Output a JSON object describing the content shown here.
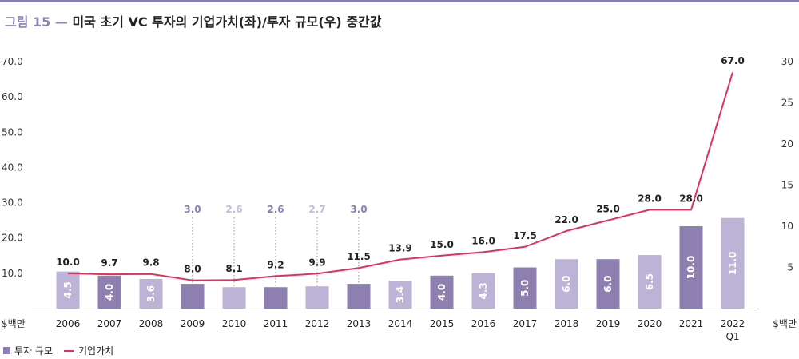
{
  "title": {
    "number": "그림 15",
    "dash": "—",
    "text": "미국 초기 VC 투자의 기업가치(좌)/투자 규모(우) 중간값"
  },
  "legend": {
    "bar_label": "투자 규모",
    "line_label": "기업가치"
  },
  "colors": {
    "bar_dark": "#8d7fb0",
    "bar_light": "#bdb3d6",
    "line": "#e0305e",
    "label_dark": "#8d7fb0",
    "label_light": "#c3bcda",
    "title_accent": "#8d84b8"
  },
  "chart_data": {
    "type": "bar+line",
    "categories": [
      "2006",
      "2007",
      "2008",
      "2009",
      "2010",
      "2011",
      "2012",
      "2013",
      "2014",
      "2015",
      "2016",
      "2017",
      "2018",
      "2019",
      "2020",
      "2021",
      "2022"
    ],
    "category_sublabels": [
      "",
      "",
      "",
      "",
      "",
      "",
      "",
      "",
      "",
      "",
      "",
      "",
      "",
      "",
      "",
      "",
      "Q1"
    ],
    "series": [
      {
        "name": "투자 규모",
        "kind": "bar",
        "axis": "right",
        "values": [
          4.5,
          4.0,
          3.6,
          3.0,
          2.6,
          2.6,
          2.7,
          3.0,
          3.4,
          4.0,
          4.3,
          5.0,
          6.0,
          6.0,
          6.5,
          10.0,
          11.0
        ],
        "labels": [
          "4.5",
          "4.0",
          "3.6",
          "3.0",
          "2.6",
          "2.6",
          "2.7",
          "3.0",
          "3.4",
          "4.0",
          "4.3",
          "5.0",
          "6.0",
          "6.0",
          "6.5",
          "10.0",
          "11.0"
        ],
        "shade": [
          "light",
          "dark",
          "light",
          "dark",
          "light",
          "dark",
          "light",
          "dark",
          "light",
          "dark",
          "light",
          "dark",
          "light",
          "dark",
          "light",
          "dark",
          "light"
        ],
        "label_position": [
          "inside",
          "inside",
          "inside",
          "above",
          "above",
          "above",
          "above",
          "above",
          "inside",
          "inside",
          "inside",
          "inside",
          "inside",
          "inside",
          "inside",
          "inside",
          "inside"
        ]
      },
      {
        "name": "기업가치",
        "kind": "line",
        "axis": "left",
        "values": [
          10.0,
          9.7,
          9.8,
          8.0,
          8.1,
          9.2,
          9.9,
          11.5,
          13.9,
          15.0,
          16.0,
          17.5,
          22.0,
          25.0,
          28.0,
          28.0,
          67.0
        ],
        "labels": [
          "10.0",
          "9.7",
          "9.8",
          "8.0",
          "8.1",
          "9.2",
          "9.9",
          "11.5",
          "13.9",
          "15.0",
          "16.0",
          "17.5",
          "22.0",
          "25.0",
          "28.0",
          "28.0",
          "67.0"
        ]
      }
    ],
    "y_left": {
      "ticks": [
        "10.0",
        "20.0",
        "30.0",
        "40.0",
        "50.0",
        "60.0",
        "70.0"
      ],
      "tick_values": [
        10,
        20,
        30,
        40,
        50,
        60,
        70
      ],
      "range": [
        0,
        70
      ],
      "unit": "$백만"
    },
    "y_right": {
      "ticks": [
        "5",
        "10",
        "15",
        "20",
        "25",
        "30"
      ],
      "tick_values": [
        5,
        10,
        15,
        20,
        25,
        30
      ],
      "range": [
        0,
        30
      ],
      "unit": "$백만"
    },
    "grid": false,
    "legend_position": "bottom-left"
  }
}
